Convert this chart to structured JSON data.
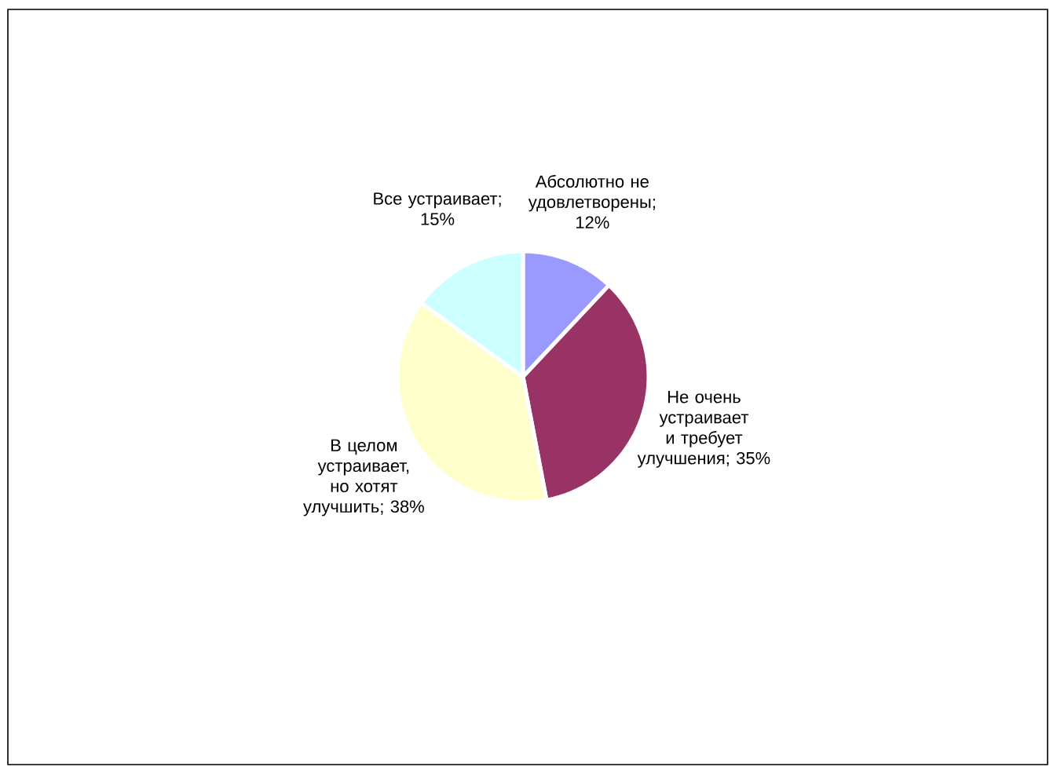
{
  "chart_data": {
    "type": "pie",
    "categories": [
      "Абсолютно не удовлетворены",
      "Не очень устраивает и требует улучшения",
      "В целом устраивает, но хотят улучшить",
      "Все устраивает"
    ],
    "values": [
      12,
      35,
      38,
      15
    ],
    "value_labels": [
      "; 12%",
      "; 35%",
      "; 38%",
      "; 15%"
    ],
    "colors": [
      "#9999ff",
      "#993366",
      "#ffffcc",
      "#ccffff"
    ]
  }
}
